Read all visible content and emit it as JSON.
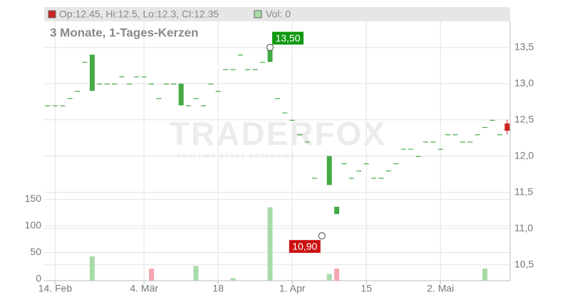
{
  "chart_data": {
    "type": "candlestick",
    "legend": {
      "ohlc": "Op:12.45, Hi:12.5, Lo:12.3, Cl:12.35",
      "ohlc_color": "#cc2222",
      "volume": "Vol: 0",
      "volume_color": "#a8dba8"
    },
    "subtitle": "3 Monate, 1-Tages-Kerzen",
    "watermark": "TRADERFOX",
    "watermark_sub": "REALTIME STOCK SCREENING",
    "categories": [
      null,
      "14. Feb",
      null,
      null,
      null,
      null,
      null,
      null,
      null,
      null,
      null,
      null,
      null,
      "4. Mär",
      null,
      null,
      null,
      null,
      null,
      null,
      null,
      null,
      null,
      "18",
      null,
      null,
      null,
      null,
      null,
      null,
      null,
      null,
      null,
      "1. Apr",
      null,
      null,
      null,
      null,
      null,
      null,
      null,
      null,
      null,
      "15",
      null,
      null,
      null,
      null,
      null,
      null,
      null,
      null,
      null,
      "2. Mai",
      null,
      null,
      null,
      null,
      null,
      null,
      null,
      null,
      null
    ],
    "open": [
      12.7,
      12.7,
      12.7,
      12.8,
      12.9,
      13.3,
      12.9,
      13.0,
      13.0,
      13.0,
      13.1,
      13.0,
      13.1,
      13.1,
      13.0,
      12.8,
      13.0,
      13.0,
      12.7,
      12.7,
      12.8,
      12.7,
      13.0,
      12.9,
      13.2,
      13.2,
      13.4,
      13.2,
      13.2,
      13.3,
      13.3,
      12.8,
      12.6,
      12.5,
      12.3,
      12.2,
      11.7,
      null,
      11.6,
      11.2,
      11.9,
      11.7,
      11.8,
      11.9,
      11.7,
      11.7,
      11.8,
      11.9,
      12.1,
      12.1,
      12.0,
      12.2,
      12.2,
      12.1,
      12.3,
      12.3,
      12.2,
      12.2,
      12.3,
      12.4,
      12.5,
      12.3,
      12.45
    ],
    "high": [
      12.7,
      12.7,
      12.7,
      12.8,
      12.9,
      13.3,
      13.4,
      13.0,
      13.0,
      13.0,
      13.1,
      13.0,
      13.1,
      13.1,
      13.0,
      12.8,
      13.0,
      13.0,
      13.0,
      12.7,
      12.8,
      12.7,
      13.0,
      12.9,
      13.2,
      13.2,
      13.4,
      13.2,
      13.2,
      13.3,
      13.5,
      12.8,
      12.6,
      12.5,
      12.3,
      12.2,
      11.7,
      null,
      12.0,
      11.3,
      11.9,
      11.7,
      11.8,
      11.9,
      11.7,
      11.7,
      11.8,
      11.9,
      12.1,
      12.1,
      12.0,
      12.2,
      12.2,
      12.1,
      12.3,
      12.3,
      12.2,
      12.2,
      12.3,
      12.4,
      12.5,
      12.3,
      12.5
    ],
    "low": [
      12.7,
      12.7,
      12.7,
      12.8,
      12.9,
      13.3,
      12.9,
      13.0,
      13.0,
      13.0,
      13.1,
      13.0,
      13.1,
      13.1,
      13.0,
      12.8,
      13.0,
      13.0,
      12.7,
      12.7,
      12.8,
      12.7,
      13.0,
      12.9,
      13.2,
      13.2,
      13.4,
      13.2,
      13.2,
      13.3,
      13.3,
      12.8,
      12.6,
      12.5,
      12.3,
      12.2,
      11.7,
      null,
      11.6,
      11.2,
      11.9,
      11.7,
      11.8,
      11.9,
      11.7,
      11.7,
      11.8,
      11.9,
      12.1,
      12.1,
      12.0,
      12.2,
      12.2,
      12.1,
      12.3,
      12.3,
      12.2,
      12.2,
      12.3,
      12.4,
      12.5,
      12.3,
      12.3
    ],
    "close": [
      12.7,
      12.7,
      12.7,
      12.8,
      12.9,
      13.3,
      13.4,
      13.0,
      13.0,
      13.0,
      13.1,
      13.0,
      13.1,
      13.1,
      13.0,
      12.8,
      13.0,
      13.0,
      13.0,
      12.7,
      12.8,
      12.7,
      13.0,
      12.9,
      13.2,
      13.2,
      13.4,
      13.2,
      13.2,
      13.3,
      13.5,
      12.8,
      12.6,
      12.5,
      12.3,
      12.2,
      11.7,
      null,
      12.0,
      11.3,
      11.9,
      11.7,
      11.8,
      11.9,
      11.7,
      11.7,
      11.8,
      11.9,
      12.1,
      12.1,
      12.0,
      12.2,
      12.2,
      12.1,
      12.3,
      12.3,
      12.2,
      12.2,
      12.3,
      12.4,
      12.5,
      12.3,
      12.35
    ],
    "up_color": "#44aa44",
    "down_color": "#cc2222",
    "volume": [
      0,
      0,
      0,
      0,
      0,
      0,
      43,
      0,
      0,
      0,
      0,
      0,
      0,
      0,
      20,
      0,
      0,
      0,
      0,
      0,
      25,
      0,
      0,
      0,
      0,
      2,
      0,
      0,
      0,
      0,
      135,
      0,
      0,
      0,
      0,
      0,
      0,
      0,
      10,
      20,
      0,
      0,
      0,
      0,
      0,
      0,
      0,
      0,
      0,
      0,
      0,
      0,
      0,
      0,
      0,
      0,
      0,
      0,
      0,
      20,
      0,
      0,
      0
    ],
    "volume_down_days": [
      14,
      39
    ],
    "volume_up_color": "#a8dba8",
    "volume_down_color": "#f4a6b0",
    "annotations": [
      {
        "index": 30,
        "value": 13.5,
        "label": "13,50",
        "color": "#119911"
      },
      {
        "index": 37,
        "value": 10.9,
        "label": "10,90",
        "color": "#cc1111"
      }
    ],
    "ylim": [
      10.3,
      13.86
    ],
    "yticks": [
      {
        "value": 10.5,
        "label": "10,5"
      },
      {
        "value": 11.0,
        "label": "11,0"
      },
      {
        "value": 11.5,
        "label": "11,5"
      },
      {
        "value": 12.0,
        "label": "12,0"
      },
      {
        "value": 12.5,
        "label": "12,5"
      },
      {
        "value": 13.0,
        "label": "13,0"
      },
      {
        "value": 13.5,
        "label": "13,5"
      }
    ],
    "y2lim": [
      0,
      484
    ],
    "y2ticks": [
      0,
      50,
      100,
      150
    ],
    "grid": true
  }
}
